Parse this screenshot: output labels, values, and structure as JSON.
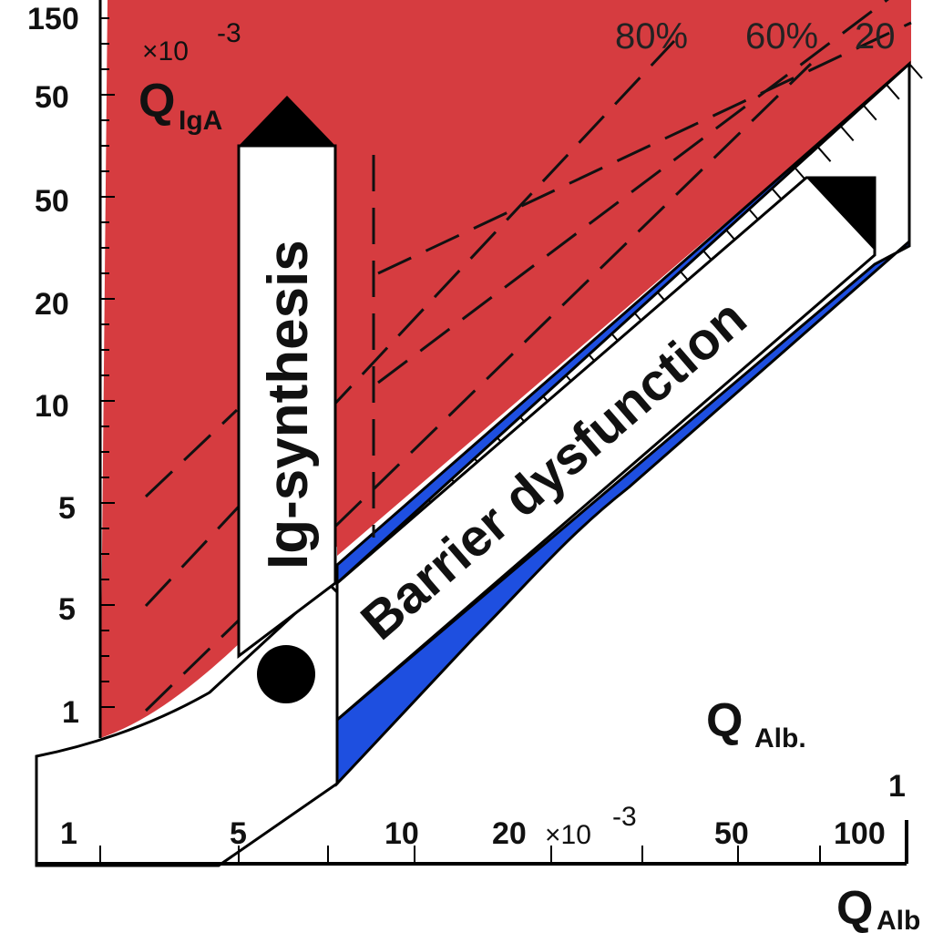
{
  "chart_data": {
    "type": "line",
    "title": "",
    "scale": "log-log",
    "x_axis": {
      "label": "Q",
      "label_sub": "Alb",
      "tick_labels": [
        "1",
        "5",
        "10",
        "20",
        "50",
        "100"
      ],
      "unit_after_20": "×10",
      "unit_exp": "-3",
      "corner_label": "1"
    },
    "y_axis": {
      "label": "Q",
      "label_sub": "IgA",
      "tick_labels": [
        "150",
        "50",
        "50",
        "20",
        "10",
        "5",
        "5",
        "1"
      ],
      "unit": "×10",
      "unit_exp": "-3"
    },
    "inner_label": {
      "main": "Q",
      "sub": "Alb."
    },
    "percent_lines": [
      "80%",
      "60%",
      "20"
    ],
    "regions": {
      "synthesis": "Ig-synthesis",
      "barrier": "Barrier dysfunction"
    },
    "colors": {
      "synthesis_region": "#D63C40",
      "upper_limit_band": "#1E4FE0",
      "background": "#FFFFFF",
      "ink": "#000000"
    }
  }
}
